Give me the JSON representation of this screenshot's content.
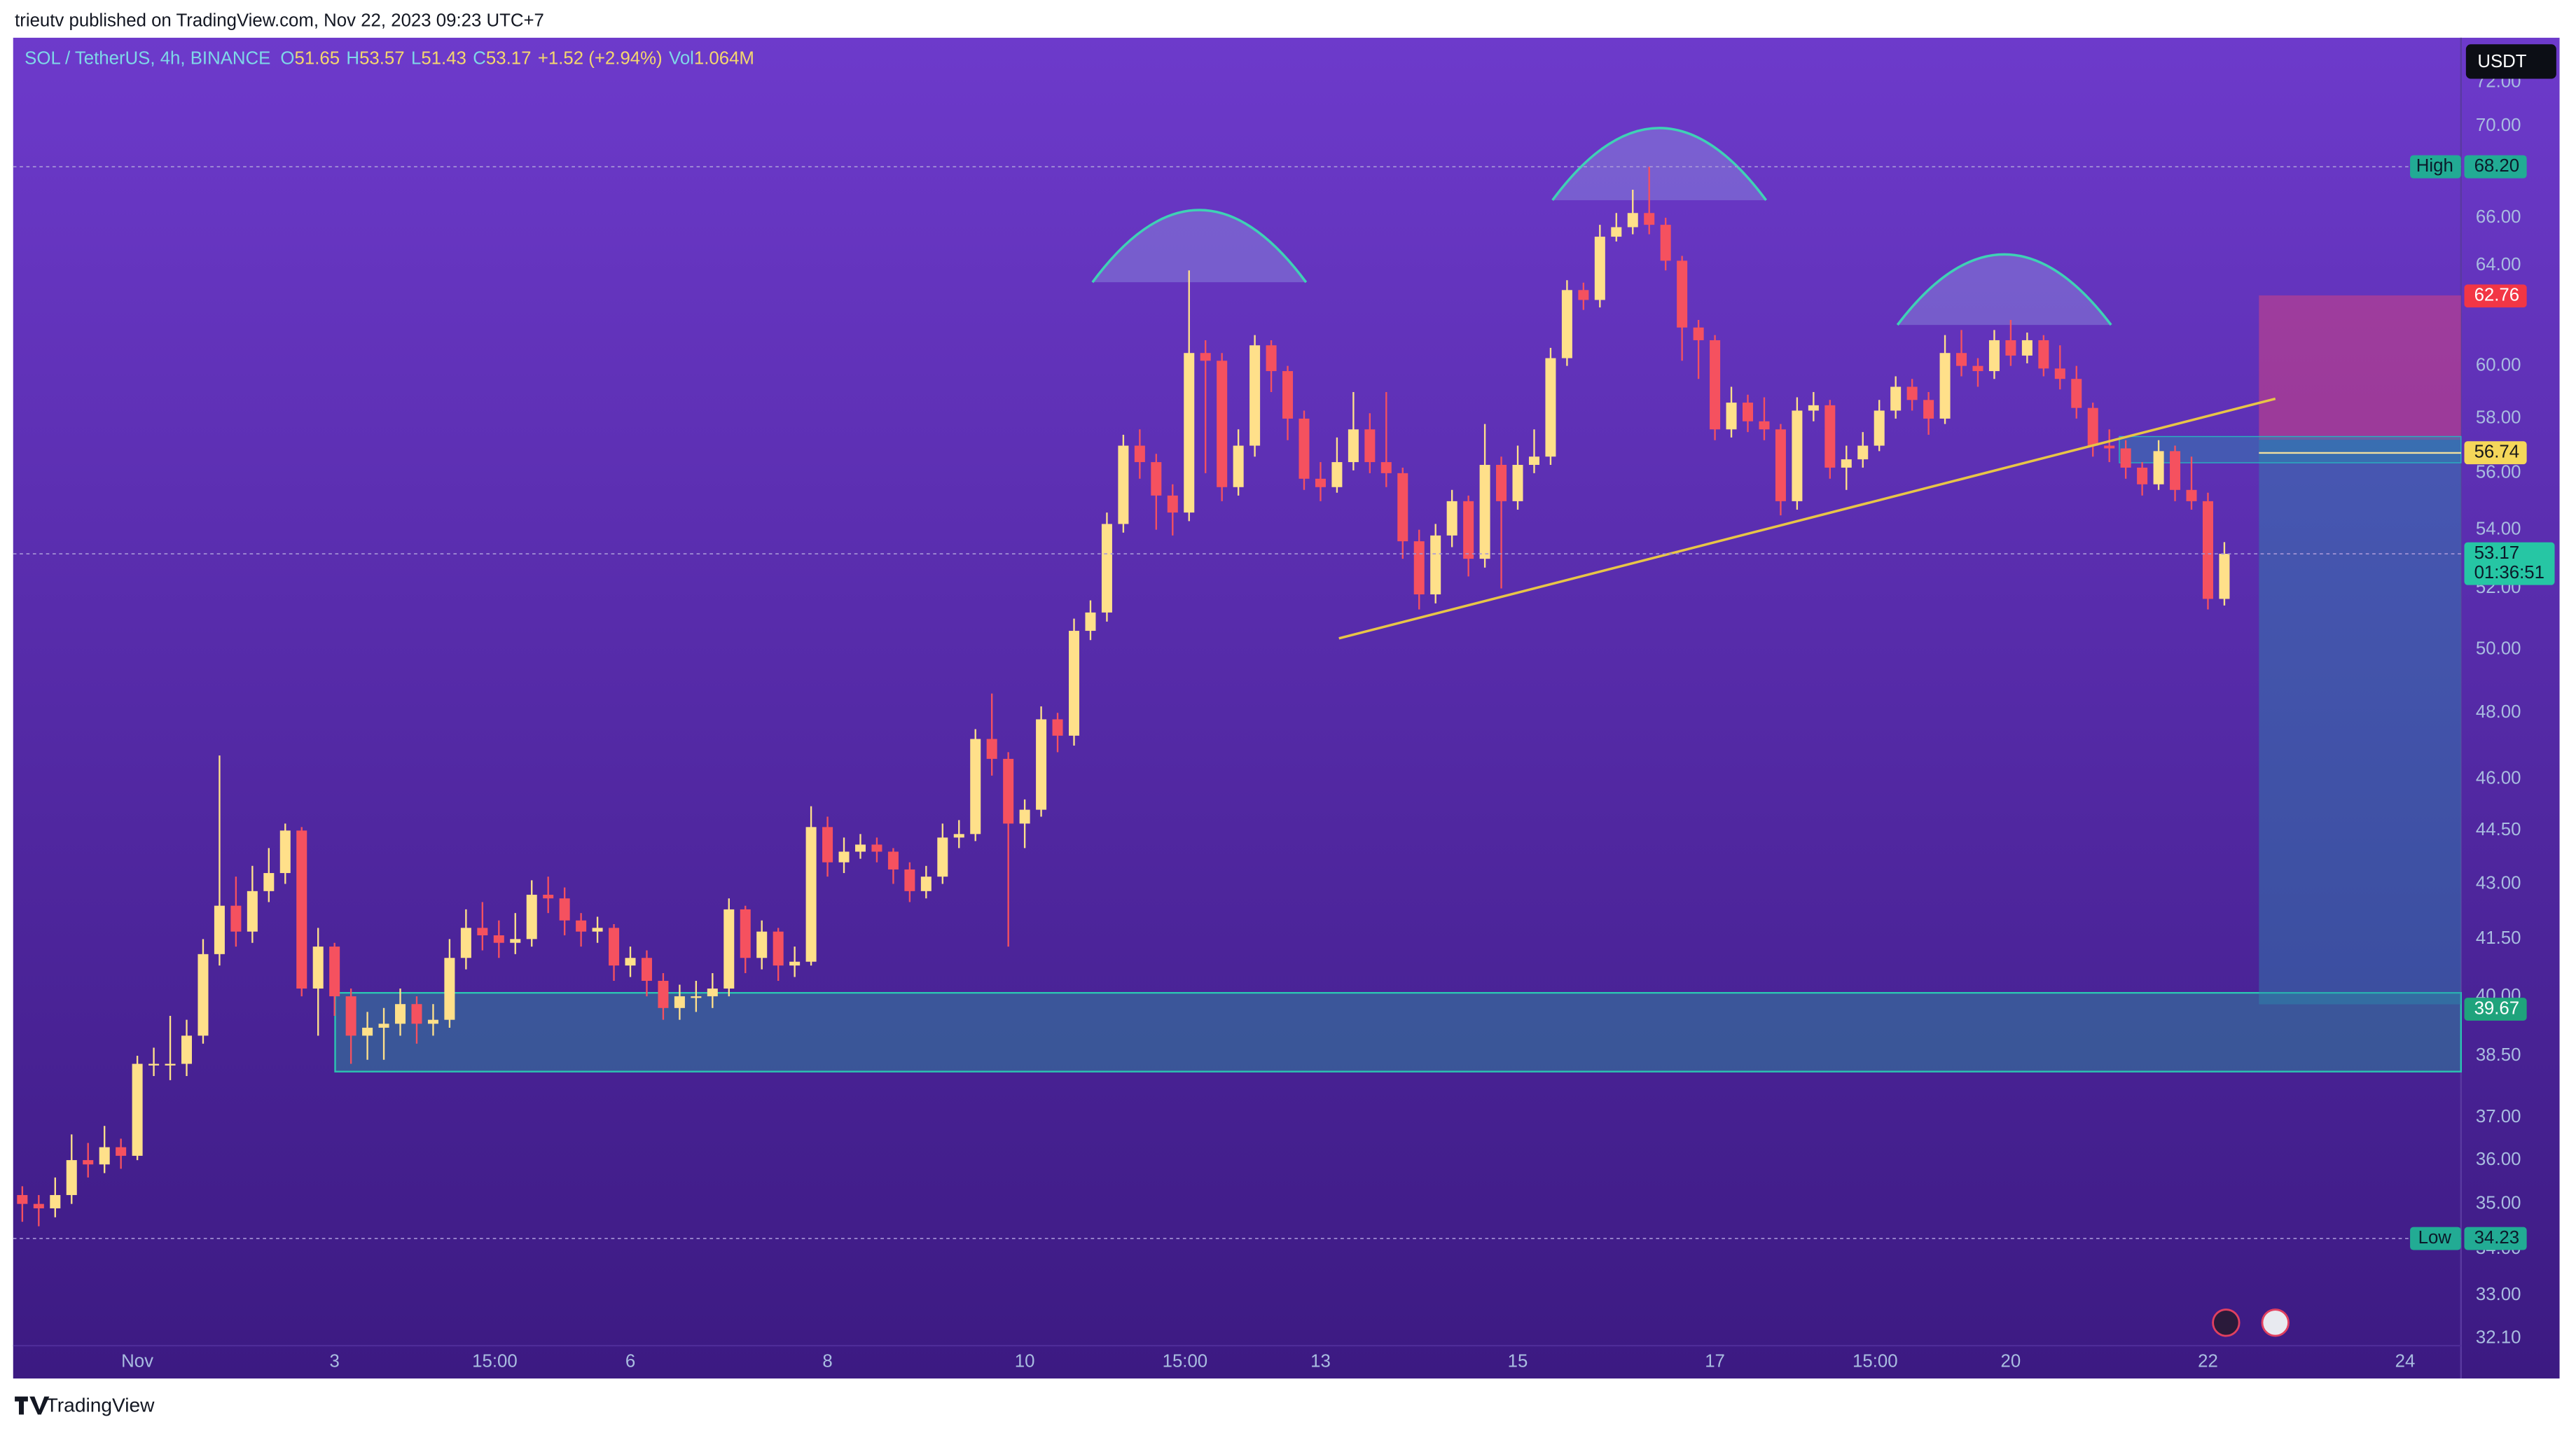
{
  "header": {
    "published": "trieutv published on TradingView.com, Nov 22, 2023 09:23 UTC+7"
  },
  "footer": {
    "brand": "TradingView"
  },
  "chart_data": {
    "type": "candlestick",
    "symbol": "SOL / TetherUS, 4h, BINANCE",
    "ohlc_legend": [
      {
        "key": "O",
        "value": 51.65
      },
      {
        "key": "H",
        "value": 53.57
      },
      {
        "key": "L",
        "value": 51.43
      },
      {
        "key": "C",
        "value": 53.17
      }
    ],
    "change": "+1.52 (+2.94%)",
    "volume": {
      "key": "Vol",
      "value": "1.064M"
    },
    "currency": "USDT",
    "up_color": "#ffe08a",
    "down_color": "#f5515f",
    "log_scale": true,
    "grid": false,
    "x": [
      "2023-10-30T20:00",
      "2023-10-31T00:00",
      "2023-10-31T04:00",
      "2023-10-31T08:00",
      "2023-10-31T12:00",
      "2023-10-31T16:00",
      "2023-10-31T20:00",
      "2023-11-01T00:00",
      "2023-11-01T04:00",
      "2023-11-01T08:00",
      "2023-11-01T12:00",
      "2023-11-01T16:00",
      "2023-11-01T20:00",
      "2023-11-02T00:00",
      "2023-11-02T04:00",
      "2023-11-02T08:00",
      "2023-11-02T12:00",
      "2023-11-02T16:00",
      "2023-11-02T20:00",
      "2023-11-03T00:00",
      "2023-11-03T04:00",
      "2023-11-03T08:00",
      "2023-11-03T12:00",
      "2023-11-03T16:00",
      "2023-11-03T20:00",
      "2023-11-04T00:00",
      "2023-11-04T04:00",
      "2023-11-04T08:00",
      "2023-11-04T12:00",
      "2023-11-04T16:00",
      "2023-11-04T20:00",
      "2023-11-05T00:00",
      "2023-11-05T04:00",
      "2023-11-05T08:00",
      "2023-11-05T12:00",
      "2023-11-05T16:00",
      "2023-11-05T20:00",
      "2023-11-06T00:00",
      "2023-11-06T04:00",
      "2023-11-06T08:00",
      "2023-11-06T12:00",
      "2023-11-06T16:00",
      "2023-11-06T20:00",
      "2023-11-07T00:00",
      "2023-11-07T04:00",
      "2023-11-07T08:00",
      "2023-11-07T12:00",
      "2023-11-07T16:00",
      "2023-11-07T20:00",
      "2023-11-08T00:00",
      "2023-11-08T04:00",
      "2023-11-08T08:00",
      "2023-11-08T12:00",
      "2023-11-08T16:00",
      "2023-11-08T20:00",
      "2023-11-09T00:00",
      "2023-11-09T04:00",
      "2023-11-09T08:00",
      "2023-11-09T12:00",
      "2023-11-09T16:00",
      "2023-11-09T20:00",
      "2023-11-10T00:00",
      "2023-11-10T04:00",
      "2023-11-10T08:00",
      "2023-11-10T12:00",
      "2023-11-10T16:00",
      "2023-11-10T20:00",
      "2023-11-11T00:00",
      "2023-11-11T04:00",
      "2023-11-11T08:00",
      "2023-11-11T12:00",
      "2023-11-11T16:00",
      "2023-11-11T20:00",
      "2023-11-12T00:00",
      "2023-11-12T04:00",
      "2023-11-12T08:00",
      "2023-11-12T12:00",
      "2023-11-12T16:00",
      "2023-11-12T20:00",
      "2023-11-13T00:00",
      "2023-11-13T04:00",
      "2023-11-13T08:00",
      "2023-11-13T12:00",
      "2023-11-13T16:00",
      "2023-11-13T20:00",
      "2023-11-14T00:00",
      "2023-11-14T04:00",
      "2023-11-14T08:00",
      "2023-11-14T12:00",
      "2023-11-14T16:00",
      "2023-11-14T20:00",
      "2023-11-15T00:00",
      "2023-11-15T04:00",
      "2023-11-15T08:00",
      "2023-11-15T12:00",
      "2023-11-15T16:00",
      "2023-11-15T20:00",
      "2023-11-16T00:00",
      "2023-11-16T04:00",
      "2023-11-16T08:00",
      "2023-11-16T12:00",
      "2023-11-16T16:00",
      "2023-11-16T20:00",
      "2023-11-17T00:00",
      "2023-11-17T04:00",
      "2023-11-17T08:00",
      "2023-11-17T12:00",
      "2023-11-17T16:00",
      "2023-11-17T20:00",
      "2023-11-18T00:00",
      "2023-11-18T04:00",
      "2023-11-18T08:00",
      "2023-11-18T12:00",
      "2023-11-18T16:00",
      "2023-11-18T20:00",
      "2023-11-19T00:00",
      "2023-11-19T04:00",
      "2023-11-19T08:00",
      "2023-11-19T12:00",
      "2023-11-19T16:00",
      "2023-11-19T20:00",
      "2023-11-20T00:00",
      "2023-11-20T04:00",
      "2023-11-20T08:00",
      "2023-11-20T12:00",
      "2023-11-20T16:00",
      "2023-11-20T20:00",
      "2023-11-21T00:00",
      "2023-11-21T04:00",
      "2023-11-21T08:00",
      "2023-11-21T12:00",
      "2023-11-21T16:00",
      "2023-11-21T20:00",
      "2023-11-22T00:00",
      "2023-11-22T04:00"
    ],
    "open": [
      35.2,
      35.0,
      34.9,
      35.2,
      36.0,
      35.9,
      36.3,
      36.1,
      38.3,
      38.3,
      38.3,
      39.0,
      41.1,
      42.4,
      41.7,
      42.8,
      43.3,
      44.5,
      40.2,
      41.3,
      40.0,
      39.0,
      39.2,
      39.3,
      39.8,
      39.3,
      39.4,
      41.0,
      41.8,
      41.6,
      41.4,
      41.5,
      42.7,
      42.6,
      42.0,
      41.7,
      41.8,
      40.8,
      41.0,
      40.4,
      39.7,
      40.0,
      40.0,
      40.2,
      42.3,
      41.0,
      41.7,
      40.8,
      40.9,
      44.6,
      43.6,
      43.9,
      44.1,
      43.9,
      43.4,
      42.8,
      43.2,
      44.3,
      44.4,
      47.2,
      46.6,
      44.7,
      45.1,
      47.8,
      47.3,
      50.6,
      51.2,
      54.2,
      57.0,
      56.4,
      55.2,
      54.6,
      60.5,
      60.2,
      55.5,
      57.0,
      60.8,
      59.8,
      58.0,
      55.8,
      55.5,
      56.4,
      57.6,
      56.4,
      56.0,
      53.6,
      51.8,
      53.8,
      55.0,
      53.0,
      56.3,
      55.0,
      56.3,
      56.6,
      60.3,
      63.0,
      62.6,
      65.2,
      65.6,
      66.2,
      65.7,
      64.2,
      61.5,
      61.0,
      57.6,
      58.6,
      57.9,
      57.6,
      55.0,
      58.3,
      58.5,
      56.2,
      56.5,
      57.0,
      58.3,
      59.2,
      58.7,
      58.0,
      60.5,
      60.0,
      59.8,
      61.0,
      60.4,
      61.0,
      59.9,
      59.5,
      58.4,
      57.0,
      56.9,
      56.2,
      55.6,
      56.8,
      55.4,
      55.0,
      51.65
    ],
    "high": [
      35.4,
      35.2,
      35.6,
      36.6,
      36.4,
      36.8,
      36.5,
      38.5,
      38.7,
      39.5,
      39.4,
      41.5,
      46.7,
      43.2,
      43.5,
      44.0,
      44.7,
      44.6,
      41.8,
      41.4,
      40.2,
      39.6,
      39.7,
      40.2,
      40.0,
      39.8,
      41.5,
      42.3,
      42.5,
      42.0,
      42.2,
      43.1,
      43.2,
      42.9,
      42.2,
      42.1,
      41.9,
      41.3,
      41.2,
      40.6,
      40.3,
      40.4,
      40.6,
      42.6,
      42.4,
      42.0,
      41.8,
      41.3,
      45.2,
      44.9,
      44.3,
      44.4,
      44.3,
      44.0,
      43.6,
      43.5,
      44.7,
      44.8,
      47.5,
      48.6,
      46.8,
      45.4,
      48.2,
      48.0,
      51.0,
      51.6,
      54.6,
      57.4,
      57.6,
      56.7,
      55.6,
      63.8,
      61.0,
      60.5,
      57.6,
      61.2,
      61.0,
      60.0,
      58.3,
      56.4,
      57.3,
      59.0,
      58.2,
      59.0,
      56.2,
      54.0,
      54.2,
      55.4,
      55.2,
      57.8,
      56.6,
      57.0,
      57.6,
      60.7,
      63.4,
      63.3,
      65.7,
      66.2,
      67.2,
      68.2,
      66.0,
      64.4,
      61.8,
      61.2,
      59.2,
      58.9,
      58.8,
      57.8,
      58.8,
      59.0,
      58.7,
      57.0,
      57.5,
      58.7,
      59.6,
      59.5,
      59.0,
      61.2,
      61.4,
      60.3,
      61.4,
      61.8,
      61.3,
      61.2,
      60.8,
      60.0,
      58.6,
      57.6,
      57.2,
      56.4,
      57.2,
      57.0,
      56.6,
      55.3,
      53.57
    ],
    "low": [
      34.6,
      34.5,
      34.7,
      35.0,
      35.6,
      35.7,
      35.8,
      36.0,
      38.0,
      37.9,
      38.0,
      38.8,
      40.8,
      41.3,
      41.4,
      42.5,
      43.0,
      40.0,
      39.0,
      39.5,
      38.3,
      38.4,
      38.4,
      39.0,
      38.8,
      39.0,
      39.2,
      40.7,
      41.2,
      41.0,
      41.1,
      41.3,
      42.2,
      41.6,
      41.3,
      41.4,
      40.4,
      40.5,
      40.0,
      39.4,
      39.4,
      39.6,
      39.7,
      40.0,
      40.6,
      40.7,
      40.4,
      40.5,
      40.8,
      43.2,
      43.3,
      43.7,
      43.6,
      43.0,
      42.5,
      42.6,
      43.0,
      44.0,
      44.2,
      46.1,
      41.3,
      44.0,
      44.9,
      46.8,
      47.0,
      50.3,
      50.9,
      53.9,
      55.8,
      54.0,
      53.8,
      54.3,
      56.0,
      55.0,
      55.2,
      56.6,
      59.0,
      57.2,
      55.4,
      55.0,
      55.3,
      56.1,
      56.0,
      55.5,
      53.0,
      51.3,
      51.5,
      53.4,
      52.4,
      52.7,
      52.0,
      54.7,
      56.0,
      56.3,
      60.0,
      62.2,
      62.3,
      65.0,
      65.3,
      65.3,
      63.8,
      60.2,
      59.5,
      57.2,
      57.3,
      57.5,
      57.2,
      54.5,
      54.7,
      57.9,
      55.8,
      55.4,
      56.2,
      56.8,
      58.0,
      58.3,
      57.4,
      57.8,
      59.6,
      59.2,
      59.5,
      60.0,
      60.1,
      59.6,
      59.1,
      58.0,
      56.6,
      56.4,
      55.8,
      55.2,
      55.4,
      55.0,
      54.7,
      51.3,
      51.43
    ],
    "close": [
      35.0,
      34.9,
      35.2,
      36.0,
      35.9,
      36.3,
      36.1,
      38.3,
      38.3,
      38.3,
      39.0,
      41.1,
      42.4,
      41.7,
      42.8,
      43.3,
      44.5,
      40.2,
      41.3,
      40.0,
      39.0,
      39.2,
      39.3,
      39.8,
      39.3,
      39.4,
      41.0,
      41.8,
      41.6,
      41.4,
      41.5,
      42.7,
      42.6,
      42.0,
      41.7,
      41.8,
      40.8,
      41.0,
      40.4,
      39.7,
      40.0,
      40.0,
      40.2,
      42.3,
      41.0,
      41.7,
      40.8,
      40.9,
      44.6,
      43.6,
      43.9,
      44.1,
      43.9,
      43.4,
      42.8,
      43.2,
      44.3,
      44.4,
      47.2,
      46.6,
      44.7,
      45.1,
      47.8,
      47.3,
      50.6,
      51.2,
      54.2,
      57.0,
      56.4,
      55.2,
      54.6,
      60.5,
      60.2,
      55.5,
      57.0,
      60.8,
      59.8,
      58.0,
      55.8,
      55.5,
      56.4,
      57.6,
      56.4,
      56.0,
      53.6,
      51.8,
      53.8,
      55.0,
      53.0,
      56.3,
      55.0,
      56.3,
      56.6,
      60.3,
      63.0,
      62.6,
      65.2,
      65.6,
      66.2,
      65.7,
      64.2,
      61.5,
      61.0,
      57.6,
      58.6,
      57.9,
      57.6,
      55.0,
      58.3,
      58.5,
      56.2,
      56.5,
      57.0,
      58.3,
      59.2,
      58.7,
      58.0,
      60.5,
      60.0,
      59.8,
      61.0,
      60.4,
      61.0,
      59.9,
      59.5,
      58.4,
      57.0,
      56.9,
      56.2,
      55.6,
      56.8,
      55.4,
      55.0,
      51.65,
      53.17
    ],
    "xlim": [
      "2023-10-30T17:46",
      "2023-11-24T13:36"
    ],
    "xticks": [
      {
        "value": "2023-11-01T00:00",
        "label": "Nov"
      },
      {
        "value": "2023-11-03T00:00",
        "label": "3"
      },
      {
        "value": "2023-11-04T15:00",
        "label": "15:00"
      },
      {
        "value": "2023-11-06T00:00",
        "label": "6"
      },
      {
        "value": "2023-11-08T00:00",
        "label": "8"
      },
      {
        "value": "2023-11-10T00:00",
        "label": "10"
      },
      {
        "value": "2023-11-11T15:00",
        "label": "15:00"
      },
      {
        "value": "2023-11-13T00:00",
        "label": "13"
      },
      {
        "value": "2023-11-15T00:00",
        "label": "15"
      },
      {
        "value": "2023-11-17T00:00",
        "label": "17"
      },
      {
        "value": "2023-11-18T15:00",
        "label": "15:00"
      },
      {
        "value": "2023-11-20T00:00",
        "label": "20"
      },
      {
        "value": "2023-11-22T00:00",
        "label": "22"
      },
      {
        "value": "2023-11-24T00:00",
        "label": "24"
      }
    ],
    "ylim": [
      31.95,
      74.1
    ],
    "yticks": [
      {
        "value": 72,
        "label": "72.00"
      },
      {
        "value": 70,
        "label": "70.00"
      },
      {
        "value": 66,
        "label": "66.00"
      },
      {
        "value": 64,
        "label": "64.00"
      },
      {
        "value": 60,
        "label": "60.00"
      },
      {
        "value": 58,
        "label": "58.00"
      },
      {
        "value": 56,
        "label": "56.00"
      },
      {
        "value": 54,
        "label": "54.00"
      },
      {
        "value": 52,
        "label": "52.00"
      },
      {
        "value": 50,
        "label": "50.00"
      },
      {
        "value": 48,
        "label": "48.00"
      },
      {
        "value": 46,
        "label": "46.00"
      },
      {
        "value": 44.5,
        "label": "44.50"
      },
      {
        "value": 43,
        "label": "43.00"
      },
      {
        "value": 41.5,
        "label": "41.50"
      },
      {
        "value": 40,
        "label": "40.00"
      },
      {
        "value": 38.5,
        "label": "38.50"
      },
      {
        "value": 37,
        "label": "37.00"
      },
      {
        "value": 36,
        "label": "36.00"
      },
      {
        "value": 35,
        "label": "35.00"
      },
      {
        "value": 34,
        "label": "34.00"
      },
      {
        "value": 33,
        "label": "33.00"
      },
      {
        "value": 32.1,
        "label": "32.10"
      }
    ],
    "price_labels": [
      {
        "text": "High",
        "value": 68.2,
        "label": "68.20",
        "color": "#22ab94",
        "text_color": "#0b1a2a",
        "line": true
      },
      {
        "value": 62.76,
        "label": "62.76",
        "color": "#f23645",
        "text_color": "#ffffff"
      },
      {
        "value": 56.74,
        "label": "56.74",
        "color": "#f5d75a",
        "text_color": "#1a1a1a"
      },
      {
        "value": 53.17,
        "label": "53.17",
        "countdown": "01:36:51",
        "color": "#26c6a4",
        "text_color": "#0b1a2a",
        "line": true
      },
      {
        "value": 39.67,
        "label": "39.67",
        "color": "#1fa37c",
        "text_color": "#ffffff"
      },
      {
        "text": "Low",
        "value": 34.23,
        "label": "34.23",
        "color": "#22ab94",
        "text_color": "#0b1a2a",
        "line": true
      }
    ]
  }
}
